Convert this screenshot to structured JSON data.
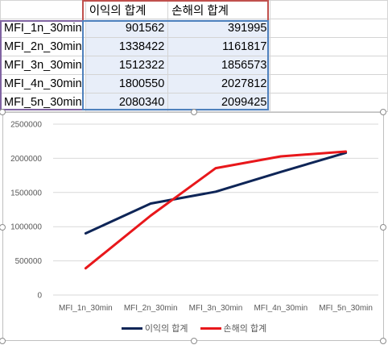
{
  "sheet": {
    "headers": [
      "",
      "이익의 합계",
      "손해의 합계",
      ""
    ],
    "rows": [
      [
        "MFI_1n_30min",
        "901562",
        "391995"
      ],
      [
        "MFI_2n_30min",
        "1338422",
        "1161817"
      ],
      [
        "MFI_3n_30min",
        "1512322",
        "1856573"
      ],
      [
        "MFI_4n_30min",
        "1800550",
        "2027812"
      ],
      [
        "MFI_5n_30min",
        "2080340",
        "2099425"
      ]
    ],
    "highlight_colors": {
      "series_ref": "#c0504d",
      "category_ref": "#8064a2",
      "values_ref": "#4f81bd",
      "values_fill": "#e8eef9"
    }
  },
  "chart_data": {
    "type": "line",
    "categories": [
      "MFI_1n_30min",
      "MFI_2n_30min",
      "MFI_3n_30min",
      "MFI_4n_30min",
      "MFI_5n_30min"
    ],
    "series": [
      {
        "name": "이익의 합계",
        "values": [
          901562,
          1338422,
          1512322,
          1800550,
          2080340
        ],
        "color": "#0e2557"
      },
      {
        "name": "손해의 합계",
        "values": [
          391995,
          1161817,
          1856573,
          2027812,
          2099425
        ],
        "color": "#e8171b"
      }
    ],
    "yticks": [
      "0",
      "500000",
      "1000000",
      "1500000",
      "2000000",
      "2500000"
    ],
    "ylim": [
      0,
      2500000
    ],
    "grid": true,
    "gridline_color": "#d9d9d9",
    "legend_position": "bottom"
  }
}
